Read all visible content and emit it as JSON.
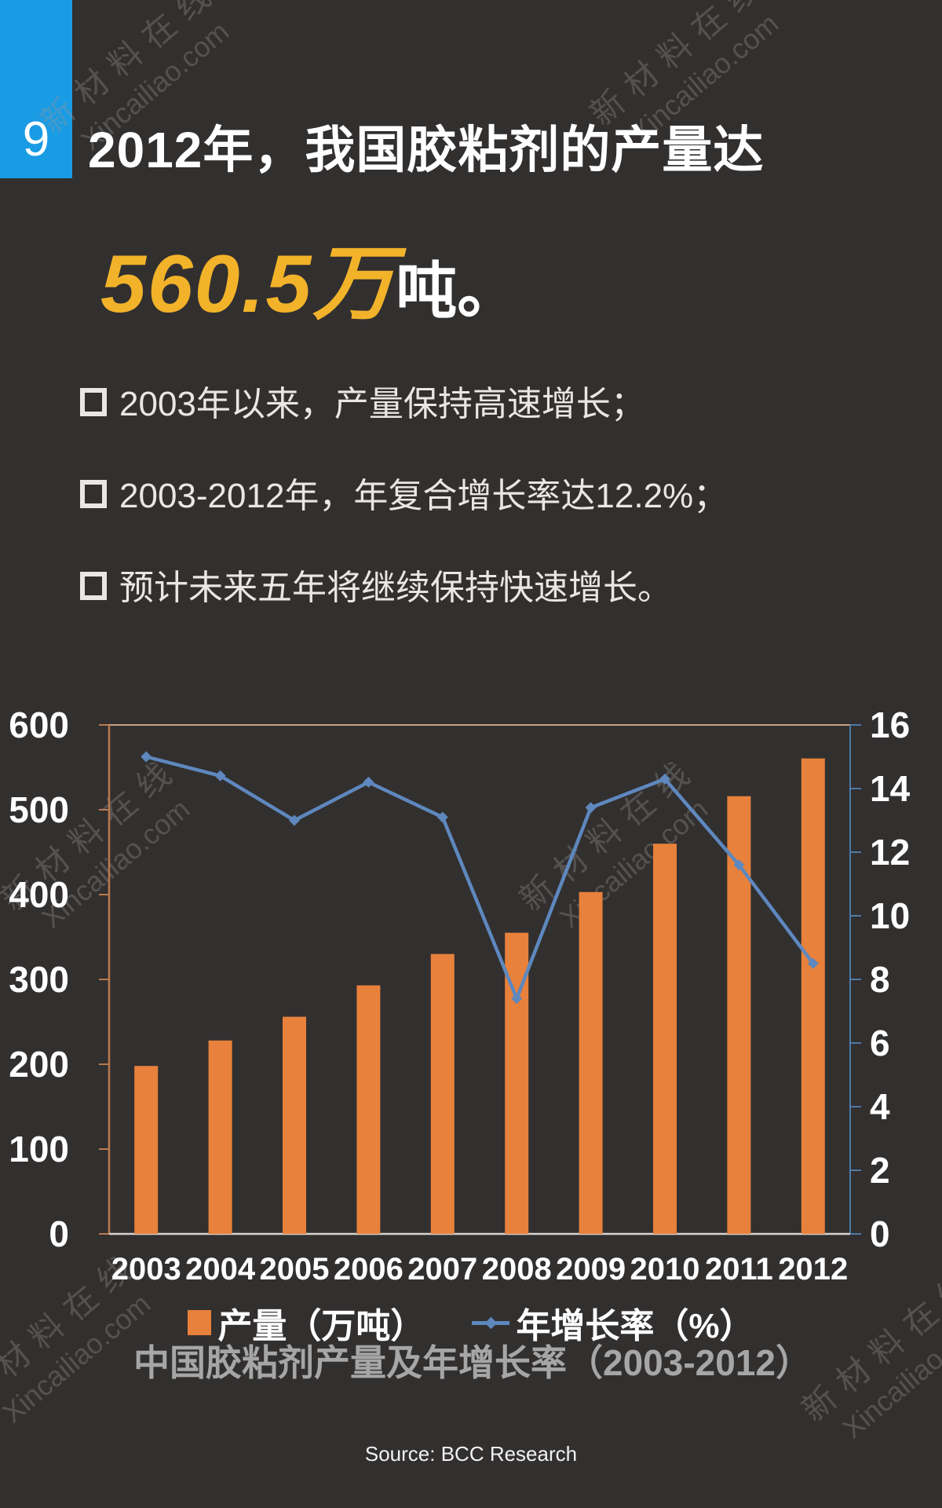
{
  "page": {
    "badge_number": "9",
    "title": "2012年，我国胶粘剂的产量达",
    "headline_value": "560.5万",
    "headline_suffix": "吨。",
    "bullets": [
      "2003年以来，产量保持高速增长；",
      "2003-2012年，年复合增长率达12.2%；",
      "预计未来五年将继续保持快速增长。"
    ]
  },
  "watermark": {
    "line1": "新材料在线",
    "line2": "Xincailiao.com"
  },
  "colors": {
    "background": "#322f2f",
    "badge_blue": "#1a9ce5",
    "headline_yellow": "#f2b32a",
    "bar_orange": "#e8813b",
    "line_blue": "#5e88be",
    "left_axis_line": "#b97a4f",
    "right_axis_line": "#4e7aa8",
    "top_gridline": "#c9a183",
    "bottom_axis_line": "#d8d4cf",
    "chart_title_gray": "#a6a6a6"
  },
  "chart_data": {
    "type": "bar",
    "subtype": "combo-bar-line",
    "title": "中国胶粘剂产量及年增长率（2003-2012）",
    "source": "Source: BCC Research",
    "categories": [
      "2003",
      "2004",
      "2005",
      "2006",
      "2007",
      "2008",
      "2009",
      "2010",
      "2011",
      "2012"
    ],
    "series": [
      {
        "name": "产量（万吨）",
        "type": "bar",
        "axis": "left",
        "color": "#e8813b",
        "values": [
          198,
          228,
          256,
          293,
          330,
          355,
          403,
          460,
          516,
          560.5
        ]
      },
      {
        "name": "年增长率（%）",
        "type": "line",
        "axis": "right",
        "color": "#5e88be",
        "values": [
          15.0,
          14.4,
          13.0,
          14.2,
          13.1,
          7.4,
          13.4,
          14.3,
          11.6,
          8.5
        ]
      }
    ],
    "left_axis": {
      "min": 0,
      "max": 600,
      "step": 100,
      "tick_labels": [
        "600",
        "500",
        "400",
        "300",
        "200",
        "100",
        "0"
      ]
    },
    "right_axis": {
      "min": 0,
      "max": 16,
      "step": 2,
      "tick_labels": [
        "16",
        "14",
        "12",
        "10",
        "8",
        "6",
        "4",
        "2",
        "0"
      ]
    },
    "legend_position": "bottom",
    "grid": "top-line-only"
  }
}
